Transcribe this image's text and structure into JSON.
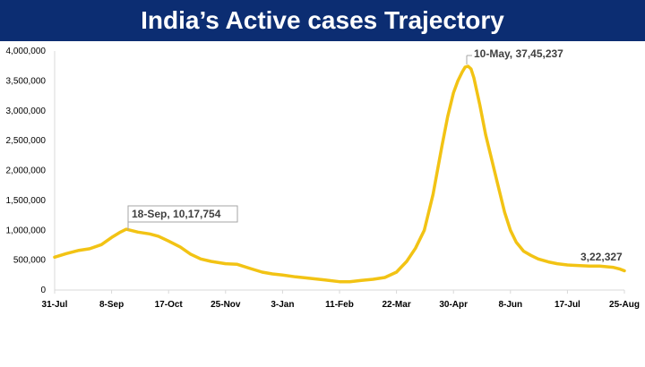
{
  "chart_data": {
    "type": "line",
    "title": "India’s Active cases Trajectory",
    "xlabel": "",
    "ylabel": "",
    "x_tick_labels": [
      "31-Jul",
      "8-Sep",
      "17-Oct",
      "25-Nov",
      "3-Jan",
      "11-Feb",
      "22-Mar",
      "30-Apr",
      "8-Jun",
      "17-Jul",
      "25-Aug"
    ],
    "y_tick_labels": [
      "0",
      "500,000",
      "1,000,000",
      "1,500,000",
      "2,000,000",
      "2,500,000",
      "3,000,000",
      "3,500,000",
      "4,000,000"
    ],
    "y_ticks": [
      0,
      500000,
      1000000,
      1500000,
      2000000,
      2500000,
      3000000,
      3500000,
      4000000
    ],
    "ylim": [
      0,
      4000000
    ],
    "grid": false,
    "legend": "none",
    "line_color": "#f2c314",
    "series": [
      {
        "x": [
          "31-Jul",
          "8-Aug",
          "16-Aug",
          "24-Aug",
          "1-Sep",
          "8-Sep",
          "14-Sep",
          "18-Sep",
          "26-Sep",
          "4-Oct",
          "10-Oct",
          "17-Oct",
          "25-Oct",
          "1-Nov",
          "8-Nov",
          "15-Nov",
          "25-Nov",
          "3-Dec",
          "12-Dec",
          "20-Dec",
          "27-Dec",
          "3-Jan",
          "12-Jan",
          "20-Jan",
          "1-Feb",
          "11-Feb",
          "18-Feb",
          "26-Feb",
          "6-Mar",
          "14-Mar",
          "22-Mar",
          "29-Mar",
          "4-Apr",
          "10-Apr",
          "16-Apr",
          "22-Apr",
          "26-Apr",
          "30-Apr",
          "3-May",
          "6-May",
          "8-May",
          "10-May",
          "12-May",
          "14-May",
          "18-May",
          "22-May",
          "26-May",
          "30-May",
          "4-Jun",
          "8-Jun",
          "12-Jun",
          "17-Jun",
          "22-Jun",
          "27-Jun",
          "4-Jul",
          "10-Jul",
          "17-Jul",
          "24-Jul",
          "1-Aug",
          "8-Aug",
          "17-Aug",
          "22-Aug",
          "25-Aug"
        ],
        "values": [
          550000,
          610000,
          660000,
          690000,
          760000,
          880000,
          970000,
          1017754,
          970000,
          940000,
          900000,
          820000,
          720000,
          600000,
          520000,
          480000,
          440000,
          430000,
          360000,
          300000,
          270000,
          250000,
          220000,
          200000,
          170000,
          140000,
          140000,
          160000,
          180000,
          210000,
          300000,
          480000,
          700000,
          1000000,
          1600000,
          2400000,
          2900000,
          3300000,
          3500000,
          3650000,
          3730000,
          3745237,
          3700000,
          3550000,
          3100000,
          2600000,
          2200000,
          1800000,
          1300000,
          1000000,
          800000,
          650000,
          580000,
          520000,
          470000,
          440000,
          420000,
          410000,
          400000,
          400000,
          380000,
          350000,
          322327
        ]
      }
    ],
    "annotations": {
      "sep_peak": "18-Sep,  10,17,754",
      "may_peak": "10-May,  37,45,237",
      "latest": "3,22,327"
    }
  }
}
